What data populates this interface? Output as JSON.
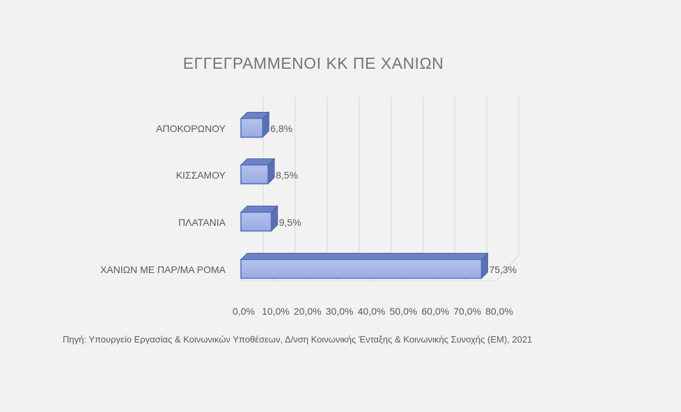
{
  "chart_data": {
    "type": "bar",
    "orientation": "horizontal",
    "title": "ΕΓΓΕΓΡΑΜΜΕΝΟΙ ΚΚ ΠΕ ΧΑΝΙΩΝ",
    "categories": [
      "ΑΠΟΚΟΡΩΝΟΥ",
      "ΚΙΣΣΑΜΟΥ",
      "ΠΛΑΤΑΝΙΑ",
      "ΧΑΝΙΩΝ ΜΕ ΠΑΡ/ΜΑ ΡΟΜΑ"
    ],
    "values": [
      6.8,
      8.5,
      9.5,
      75.3
    ],
    "data_labels": [
      "6,8%",
      "8,5%",
      "9,5%",
      "75,3%"
    ],
    "x_ticks": [
      0,
      10,
      20,
      30,
      40,
      50,
      60,
      70,
      80
    ],
    "x_tick_labels": [
      "0,0%",
      "10,0%",
      "20,0%",
      "30,0%",
      "40,0%",
      "50,0%",
      "60,0%",
      "70,0%",
      "80,0%"
    ],
    "xlim": [
      0,
      80
    ],
    "grid": true,
    "style": "3d",
    "bar_color": "#a9b8e6",
    "bar_edge_color": "#4472c4",
    "gridline_color": "#d9d9d9",
    "text_color": "#595959"
  },
  "source_note": "Πηγή: Υπουργείο Εργασίας & Κοινωνικών Υποθέσεων, Δ/νση Κοινωνικής Ένταξης & Κοινωνικής Συνοχής (ΕΜ), 2021"
}
